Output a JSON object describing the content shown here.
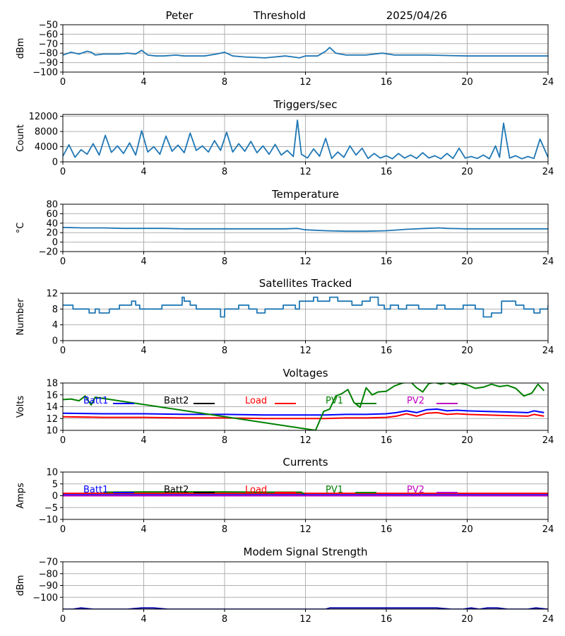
{
  "header": {
    "station": "Peter",
    "label": "Threshold",
    "date": "2025/04/26"
  },
  "colors": {
    "series": "#1f77b4",
    "grid": "#b0b0b0",
    "Batt1": "#0000ff",
    "Batt2": "#000000",
    "Load": "#ff0000",
    "PV1": "#008000",
    "PV2": "#bf00bf",
    "modem": "#0000aa"
  },
  "legend_labels": [
    "Batt1",
    "Batt2",
    "Load",
    "PV1",
    "PV2"
  ],
  "chart_data": [
    {
      "type": "line",
      "title": "",
      "xlabel": "",
      "ylabel": "dBm",
      "xlim": [
        0,
        24
      ],
      "ylim": [
        -100,
        -50
      ],
      "grid": true,
      "xticks": [
        0,
        4,
        8,
        12,
        16,
        20,
        24
      ],
      "yticks": [
        -100,
        -90,
        -80,
        -70,
        -60,
        -50
      ],
      "yticklabels": [
        "−100",
        "−90",
        "−80",
        "−70",
        "−60",
        "−50"
      ],
      "series": [
        {
          "x": [
            0,
            0.4,
            0.8,
            1.2,
            1.4,
            1.6,
            2.0,
            2.8,
            3.2,
            3.6,
            3.9,
            4.2,
            4.6,
            5.0,
            5.6,
            6.0,
            7.0,
            7.6,
            8.0,
            8.4,
            9.0,
            10.0,
            11.0,
            11.4,
            11.7,
            12.0,
            12.6,
            13.0,
            13.2,
            13.5,
            14.0,
            15.0,
            15.8,
            16.4,
            18.0,
            20.0,
            22.0,
            24.0
          ],
          "y": [
            -82,
            -79,
            -81,
            -78,
            -79,
            -82,
            -81,
            -81,
            -80,
            -81,
            -77,
            -82,
            -83,
            -83,
            -82,
            -83,
            -83,
            -81,
            -79,
            -83,
            -84,
            -85,
            -83,
            -84,
            -85,
            -83,
            -83,
            -78,
            -74,
            -80,
            -82,
            -82,
            -80,
            -82,
            -82,
            -83,
            -83,
            -83
          ]
        }
      ]
    },
    {
      "type": "line",
      "title": "Triggers/sec",
      "xlabel": "",
      "ylabel": "Count",
      "xlim": [
        0,
        24
      ],
      "ylim": [
        0,
        12500
      ],
      "grid": true,
      "xticks": [
        0,
        4,
        8,
        12,
        16,
        20,
        24
      ],
      "yticks": [
        0,
        4000,
        8000,
        12000
      ],
      "yticklabels": [
        "0",
        "4000",
        "8000",
        "12000"
      ],
      "series": [
        {
          "x": [
            0,
            0.3,
            0.6,
            0.9,
            1.2,
            1.5,
            1.8,
            2.1,
            2.4,
            2.7,
            3.0,
            3.3,
            3.6,
            3.9,
            4.2,
            4.5,
            4.8,
            5.1,
            5.4,
            5.7,
            6.0,
            6.3,
            6.6,
            6.9,
            7.2,
            7.5,
            7.8,
            8.1,
            8.4,
            8.7,
            9.0,
            9.3,
            9.6,
            9.9,
            10.2,
            10.5,
            10.8,
            11.1,
            11.4,
            11.6,
            11.8,
            12.1,
            12.4,
            12.7,
            13.0,
            13.3,
            13.6,
            13.9,
            14.2,
            14.5,
            14.8,
            15.1,
            15.4,
            15.7,
            16.0,
            16.3,
            16.6,
            16.9,
            17.2,
            17.5,
            17.8,
            18.1,
            18.4,
            18.7,
            19.0,
            19.3,
            19.6,
            19.9,
            20.2,
            20.5,
            20.8,
            21.1,
            21.4,
            21.6,
            21.8,
            22.1,
            22.4,
            22.7,
            23.0,
            23.3,
            23.6,
            24.0
          ],
          "y": [
            1500,
            4500,
            1200,
            3200,
            2000,
            4800,
            1800,
            7000,
            2500,
            4200,
            2200,
            5000,
            1800,
            8200,
            2600,
            4000,
            2000,
            6800,
            2800,
            4400,
            2400,
            7600,
            3000,
            4200,
            2600,
            5600,
            3000,
            7800,
            2600,
            4800,
            2800,
            5400,
            2400,
            4200,
            2000,
            4600,
            1800,
            3000,
            1400,
            11000,
            2000,
            1000,
            3400,
            1500,
            6200,
            900,
            2600,
            1200,
            4200,
            1800,
            3600,
            900,
            2200,
            1000,
            1600,
            800,
            2200,
            1000,
            1800,
            900,
            2400,
            1000,
            1600,
            800,
            2200,
            900,
            3600,
            1000,
            1400,
            900,
            1800,
            800,
            4200,
            1200,
            10200,
            1000,
            1600,
            800,
            1400,
            900,
            6000,
            1200
          ]
        }
      ]
    },
    {
      "type": "line",
      "title": "Temperature",
      "xlabel": "",
      "ylabel": "°C",
      "xlim": [
        0,
        24
      ],
      "ylim": [
        -20,
        80
      ],
      "grid": true,
      "xticks": [
        0,
        4,
        8,
        12,
        16,
        20,
        24
      ],
      "yticks": [
        -20,
        0,
        20,
        40,
        60,
        80
      ],
      "yticklabels": [
        "−20",
        "0",
        "20",
        "40",
        "60",
        "80"
      ],
      "series": [
        {
          "x": [
            0,
            1,
            2,
            3,
            4,
            5,
            6,
            7,
            8,
            9,
            10,
            11,
            11.6,
            12,
            13,
            14,
            15,
            16,
            17,
            18,
            18.6,
            19,
            20,
            21,
            22,
            23,
            24
          ],
          "y": [
            31,
            30,
            30,
            29,
            29,
            29,
            28,
            28,
            28,
            28,
            28,
            28,
            29,
            26,
            24,
            23,
            23,
            24,
            27,
            29,
            30,
            29,
            28,
            28,
            28,
            28,
            28
          ]
        }
      ]
    },
    {
      "type": "line",
      "title": "Satellites Tracked",
      "xlabel": "",
      "ylabel": "Number",
      "xlim": [
        0,
        24
      ],
      "ylim": [
        0,
        12
      ],
      "grid": true,
      "xticks": [
        0,
        4,
        8,
        12,
        16,
        20,
        24
      ],
      "yticks": [
        0,
        4,
        8,
        12
      ],
      "yticklabels": [
        "0",
        "4",
        "8",
        "12"
      ],
      "series": [
        {
          "step": true,
          "x": [
            0,
            0.5,
            1.0,
            1.3,
            1.6,
            1.8,
            2.3,
            2.8,
            3.2,
            3.4,
            3.6,
            3.8,
            4.5,
            4.9,
            5.5,
            5.9,
            6.0,
            6.3,
            6.6,
            7.0,
            7.5,
            7.8,
            8.0,
            8.3,
            8.7,
            9.2,
            9.6,
            10.0,
            10.4,
            10.9,
            11.5,
            11.7,
            12.0,
            12.4,
            12.6,
            12.8,
            13.2,
            13.6,
            14.3,
            14.8,
            15.2,
            15.6,
            15.9,
            16.2,
            16.6,
            17.0,
            17.6,
            18.0,
            18.5,
            18.9,
            19.3,
            19.8,
            20.4,
            20.8,
            21.2,
            21.7,
            22.0,
            22.4,
            22.8,
            23.3,
            23.6,
            24.0
          ],
          "y": [
            9,
            8,
            8,
            7,
            8,
            7,
            8,
            9,
            9,
            10,
            9,
            8,
            8,
            9,
            9,
            11,
            10,
            9,
            8,
            8,
            8,
            6,
            8,
            8,
            9,
            8,
            7,
            8,
            8,
            9,
            8,
            10,
            10,
            11,
            10,
            10,
            11,
            10,
            9,
            10,
            11,
            9,
            8,
            9,
            8,
            9,
            8,
            8,
            9,
            8,
            8,
            9,
            8,
            6,
            7,
            10,
            10,
            9,
            8,
            7,
            8,
            9
          ]
        }
      ]
    },
    {
      "type": "line",
      "title": "Voltages",
      "xlabel": "",
      "ylabel": "Volts",
      "xlim": [
        0,
        24
      ],
      "ylim": [
        10,
        18
      ],
      "grid": true,
      "xticks": [
        0,
        4,
        8,
        12,
        16,
        20,
        24
      ],
      "yticks": [
        10,
        12,
        14,
        16,
        18
      ],
      "yticklabels": [
        "10",
        "12",
        "14",
        "16",
        "18"
      ],
      "legend": "top",
      "series": [
        {
          "name": "Batt1",
          "x": [
            0,
            2,
            4,
            6,
            8,
            10,
            12,
            13,
            14,
            15,
            16,
            16.5,
            17,
            17.5,
            18,
            18.5,
            19,
            19.5,
            20,
            21,
            22,
            23,
            23.3,
            23.8
          ],
          "y": [
            12.9,
            12.8,
            12.8,
            12.7,
            12.7,
            12.6,
            12.6,
            12.6,
            12.7,
            12.7,
            12.8,
            13.0,
            13.3,
            13.0,
            13.5,
            13.6,
            13.3,
            13.4,
            13.3,
            13.2,
            13.1,
            13.0,
            13.3,
            13.0
          ]
        },
        {
          "name": "Load",
          "x": [
            0,
            2,
            4,
            6,
            8,
            10,
            12,
            13,
            14,
            15,
            16,
            16.5,
            17,
            17.5,
            18,
            18.5,
            19,
            19.5,
            20,
            21,
            22,
            23,
            23.3,
            23.8
          ],
          "y": [
            12.3,
            12.2,
            12.2,
            12.1,
            12.1,
            12.0,
            12.0,
            12.0,
            12.1,
            12.1,
            12.2,
            12.4,
            12.8,
            12.4,
            12.9,
            13.0,
            12.7,
            12.8,
            12.7,
            12.6,
            12.5,
            12.4,
            12.7,
            12.4
          ]
        },
        {
          "name": "PV1",
          "x": [
            0,
            0.4,
            0.8,
            1.1,
            1.4,
            1.6,
            12.5,
            12.9,
            13.2,
            13.5,
            13.8,
            14.1,
            14.4,
            14.7,
            15.0,
            15.3,
            15.6,
            16.0,
            16.4,
            16.8,
            17.2,
            17.5,
            17.8,
            18.1,
            18.4,
            18.7,
            19.0,
            19.3,
            19.6,
            20.0,
            20.4,
            20.8,
            21.2,
            21.6,
            22.0,
            22.4,
            22.8,
            23.2,
            23.5,
            23.8
          ],
          "y": [
            15.2,
            15.3,
            15.0,
            15.8,
            14.3,
            15.6,
            10.0,
            13.2,
            13.6,
            15.8,
            16.2,
            16.9,
            14.7,
            13.9,
            17.2,
            16.0,
            16.5,
            16.6,
            17.5,
            18.0,
            18.2,
            17.2,
            16.5,
            17.9,
            18.1,
            17.8,
            18.1,
            17.7,
            18.0,
            17.7,
            17.1,
            17.3,
            17.8,
            17.4,
            17.6,
            17.1,
            15.8,
            16.3,
            17.8,
            16.7
          ]
        }
      ]
    },
    {
      "type": "line",
      "title": "Currents",
      "xlabel": "",
      "ylabel": "Amps",
      "xlim": [
        0,
        24
      ],
      "ylim": [
        -10,
        10
      ],
      "grid": true,
      "xticks": [
        0,
        4,
        8,
        12,
        16,
        20,
        24
      ],
      "yticks": [
        -10,
        -5,
        0,
        5,
        10
      ],
      "yticklabels": [
        "−10",
        "−5",
        "0",
        "5",
        "10"
      ],
      "legend": "top",
      "series": [
        {
          "name": "Load",
          "x": [
            0,
            24
          ],
          "y": [
            1.0,
            1.0
          ]
        },
        {
          "name": "PV1",
          "x": [
            2,
            4,
            6,
            8,
            10,
            11.8,
            12.0,
            24
          ],
          "y": [
            1.5,
            1.6,
            1.6,
            1.6,
            1.5,
            1.5,
            0.2,
            0.2
          ]
        },
        {
          "name": "Batt1",
          "x": [
            0,
            24
          ],
          "y": [
            0.4,
            0.4
          ]
        },
        {
          "name": "PV2",
          "x": [
            0,
            24
          ],
          "y": [
            0.0,
            0.0
          ]
        }
      ]
    },
    {
      "type": "line",
      "title": "Modem Signal Strength",
      "xlabel": "",
      "ylabel": "dBm",
      "xlim": [
        0,
        24
      ],
      "ylim": [
        -110,
        -70
      ],
      "grid": true,
      "xticks": [
        0,
        4,
        8,
        12,
        16,
        20,
        24
      ],
      "yticks": [
        -100,
        -90,
        -80,
        -70
      ],
      "yticklabels": [
        "−100",
        "−90",
        "−80",
        "−70"
      ],
      "series": [
        {
          "x": [
            0,
            0.5,
            0.9,
            1.5,
            2.5,
            3.2,
            3.9,
            4.5,
            5.2,
            6.5,
            7.5,
            8.0,
            9.5,
            10.5,
            11.5,
            12.0,
            13.0,
            13.2,
            14,
            15,
            16,
            17,
            18.5,
            19.2,
            19.8,
            20.2,
            20.6,
            21.0,
            21.5,
            22.0,
            22.5,
            23.0,
            23.4,
            24.0
          ],
          "y": [
            -110,
            -110,
            -109,
            -110,
            -110,
            -110,
            -109,
            -109,
            -110,
            -110,
            -110,
            -110,
            -110,
            -110,
            -110,
            -110,
            -110,
            -109,
            -109,
            -109,
            -109,
            -109,
            -109,
            -110,
            -110,
            -109,
            -110,
            -109,
            -109,
            -110,
            -110,
            -110,
            -109,
            -110
          ]
        }
      ]
    }
  ]
}
